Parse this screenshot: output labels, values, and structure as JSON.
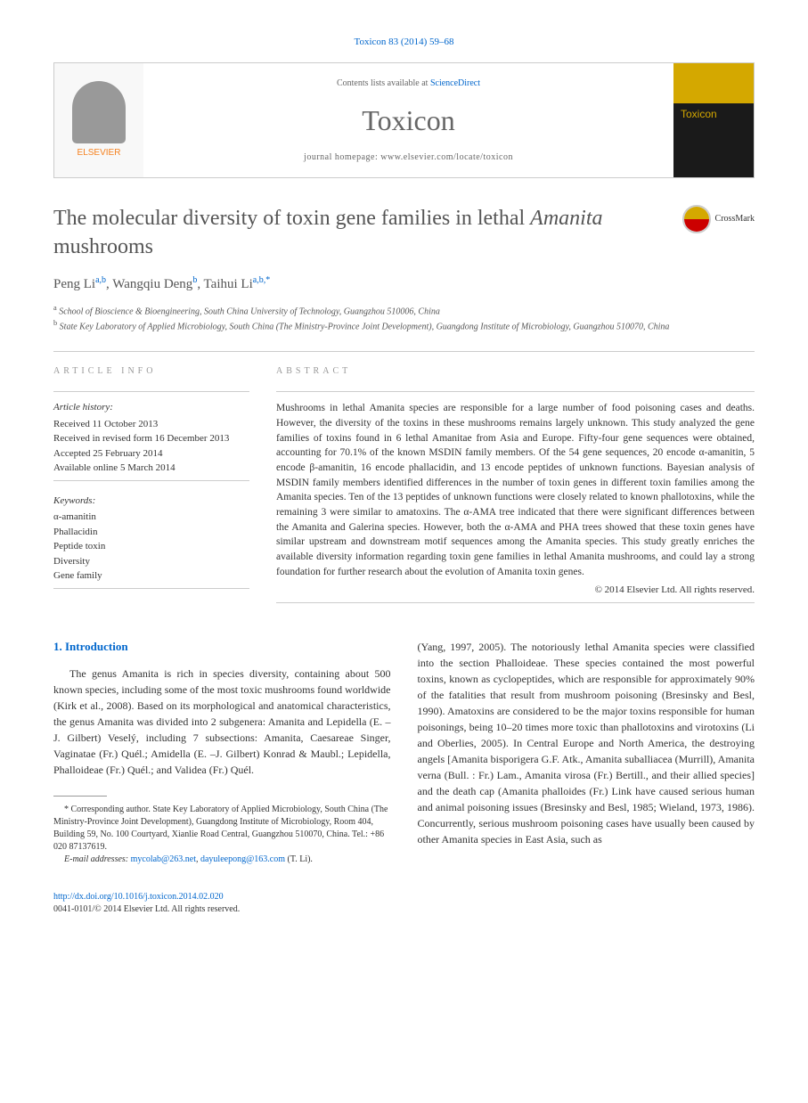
{
  "header": {
    "journal_ref": "Toxicon 83 (2014) 59–68",
    "contents_pre": "Contents lists available at ",
    "contents_link": "ScienceDirect",
    "journal_name": "Toxicon",
    "homepage_pre": "journal homepage: ",
    "homepage_url": "www.elsevier.com/locate/toxicon",
    "elsevier": "ELSEVIER",
    "cover_title": "Toxicon"
  },
  "article": {
    "title_pre": "The molecular diversity of toxin gene families in lethal ",
    "title_italic": "Amanita",
    "title_post": " mushrooms",
    "crossmark": "CrossMark"
  },
  "authors": {
    "a1_name": "Peng Li",
    "a1_aff": "a,b",
    "a2_name": "Wangqiu Deng",
    "a2_aff": "b",
    "a3_name": "Taihui Li",
    "a3_aff": "a,b,",
    "corr": "*"
  },
  "affiliations": {
    "a": "School of Bioscience & Bioengineering, South China University of Technology, Guangzhou 510006, China",
    "b": "State Key Laboratory of Applied Microbiology, South China (The Ministry-Province Joint Development), Guangdong Institute of Microbiology, Guangzhou 510070, China"
  },
  "info": {
    "label": "ARTICLE INFO",
    "history_label": "Article history:",
    "received": "Received 11 October 2013",
    "revised": "Received in revised form 16 December 2013",
    "accepted": "Accepted 25 February 2014",
    "online": "Available online 5 March 2014",
    "keywords_label": "Keywords:",
    "kw1": "α-amanitin",
    "kw2": "Phallacidin",
    "kw3": "Peptide toxin",
    "kw4": "Diversity",
    "kw5": "Gene family"
  },
  "abstract": {
    "label": "ABSTRACT",
    "text": "Mushrooms in lethal Amanita species are responsible for a large number of food poisoning cases and deaths. However, the diversity of the toxins in these mushrooms remains largely unknown. This study analyzed the gene families of toxins found in 6 lethal Amanitae from Asia and Europe. Fifty-four gene sequences were obtained, accounting for 70.1% of the known MSDIN family members. Of the 54 gene sequences, 20 encode α-amanitin, 5 encode β-amanitin, 16 encode phallacidin, and 13 encode peptides of unknown functions. Bayesian analysis of MSDIN family members identified differences in the number of toxin genes in different toxin families among the Amanita species. Ten of the 13 peptides of unknown functions were closely related to known phallotoxins, while the remaining 3 were similar to amatoxins. The α-AMA tree indicated that there were significant differences between the Amanita and Galerina species. However, both the α-AMA and PHA trees showed that these toxin genes have similar upstream and downstream motif sequences among the Amanita species. This study greatly enriches the available diversity information regarding toxin gene families in lethal Amanita mushrooms, and could lay a strong foundation for further research about the evolution of Amanita toxin genes.",
    "copyright": "© 2014 Elsevier Ltd. All rights reserved."
  },
  "body": {
    "section1": "1. Introduction",
    "col1": "The genus Amanita is rich in species diversity, containing about 500 known species, including some of the most toxic mushrooms found worldwide (Kirk et al., 2008). Based on its morphological and anatomical characteristics, the genus Amanita was divided into 2 subgenera: Amanita and Lepidella (E. –J. Gilbert) Veselý, including 7 subsections: Amanita, Caesareae Singer, Vaginatae (Fr.) Quél.; Amidella (E. –J. Gilbert) Konrad & Maubl.; Lepidella, Phalloideae (Fr.) Quél.; and Validea (Fr.) Quél.",
    "col2": "(Yang, 1997, 2005). The notoriously lethal Amanita species were classified into the section Phalloideae. These species contained the most powerful toxins, known as cyclopeptides, which are responsible for approximately 90% of the fatalities that result from mushroom poisoning (Bresinsky and Besl, 1990). Amatoxins are considered to be the major toxins responsible for human poisonings, being 10–20 times more toxic than phallotoxins and virotoxins (Li and Oberlies, 2005). In Central Europe and North America, the destroying angels [Amanita bisporigera G.F. Atk., Amanita suballiacea (Murrill), Amanita verna (Bull. : Fr.) Lam., Amanita virosa (Fr.) Bertill., and their allied species] and the death cap (Amanita phalloides (Fr.) Link have caused serious human and animal poisoning issues (Bresinsky and Besl, 1985; Wieland, 1973, 1986). Concurrently, serious mushroom poisoning cases have usually been caused by other Amanita species in East Asia, such as"
  },
  "footnote": {
    "corr": "* Corresponding author. State Key Laboratory of Applied Microbiology, South China (The Ministry-Province Joint Development), Guangdong Institute of Microbiology, Room 404, Building 59, No. 100 Courtyard, Xianlie Road Central, Guangzhou 510070, China. Tel.: +86 020 87137619.",
    "email_label": "E-mail addresses: ",
    "email1": "mycolab@263.net",
    "email_sep": ", ",
    "email2": "dayuleepong@163.com",
    "email_post": " (T. Li)."
  },
  "footer": {
    "doi": "http://dx.doi.org/10.1016/j.toxicon.2014.02.020",
    "issn": "0041-0101/© 2014 Elsevier Ltd. All rights reserved."
  }
}
